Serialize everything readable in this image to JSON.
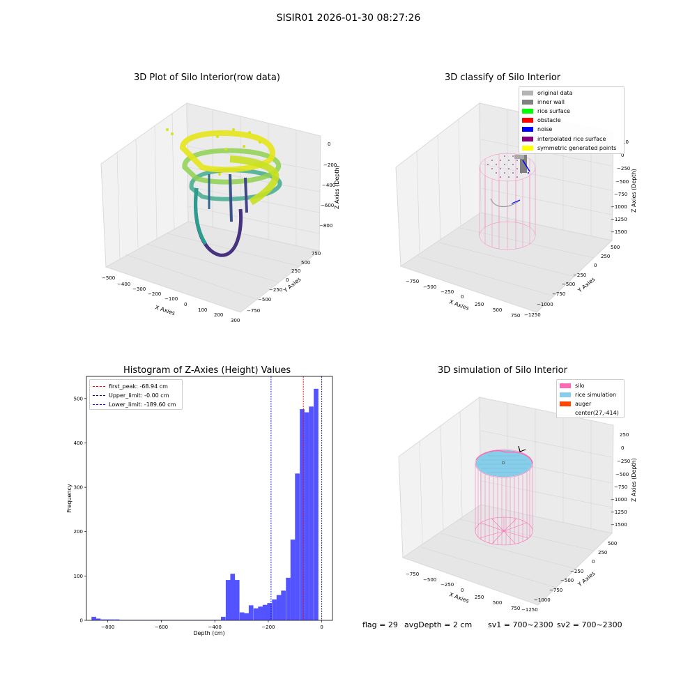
{
  "figure": {
    "suptitle": "SISIR01 2026-01-30 08:27:26",
    "status": {
      "flag": "flag = 29",
      "avg_depth": "avgDepth = 2 cm",
      "sv1": "sv1 = 700~2300",
      "sv2": "sv2 = 700~2300"
    }
  },
  "panels": {
    "raw": {
      "title": "3D Plot of Silo Interior(row data)",
      "xlabel": "X Axies",
      "ylabel": "Y Axies",
      "zlabel": "Z Axies (Depth)",
      "x_ticks": [
        "−500",
        "−400",
        "−300",
        "−200",
        "−100",
        "0",
        "100",
        "200",
        "300"
      ],
      "y_ticks": [
        "750",
        "500",
        "250",
        "0",
        "−250",
        "−500",
        "−750"
      ],
      "z_ticks": [
        "0",
        "−200",
        "−400",
        "−600",
        "−800"
      ],
      "colormap": "viridis"
    },
    "classify": {
      "title": "3D classify of Silo Interior",
      "xlabel": "X Axies",
      "ylabel": "Y Axies",
      "zlabel": "Z Axies (Depth)",
      "x_ticks": [
        "−750",
        "−500",
        "−250",
        "0",
        "250",
        "500",
        "750"
      ],
      "y_ticks": [
        "500",
        "250",
        "0",
        "−250",
        "−500",
        "−750",
        "−1000",
        "−1250"
      ],
      "z_ticks": [
        "0",
        "−250",
        "−500",
        "−750",
        "−1000",
        "−1250",
        "−1500"
      ],
      "z_tick_top_partial": "10",
      "legend": [
        {
          "label": "original data",
          "color": "#b3b3b3"
        },
        {
          "label": "inner wall",
          "color": "#808080"
        },
        {
          "label": "rice surface",
          "color": "#00ff00"
        },
        {
          "label": "obstacle",
          "color": "#ff0000"
        },
        {
          "label": "noise",
          "color": "#0000ff"
        },
        {
          "label": "interpolated rice surface",
          "color": "#800080"
        },
        {
          "label": "symmetric generated points",
          "color": "#ffff00"
        }
      ]
    },
    "simulation": {
      "title": "3D simulation of Silo Interior",
      "xlabel": "X Axies",
      "ylabel": "Y Axies",
      "zlabel": "Z Axies (Depth)",
      "x_ticks": [
        "−750",
        "−500",
        "−250",
        "0",
        "250",
        "500",
        "750"
      ],
      "y_ticks": [
        "500",
        "250",
        "0",
        "−250",
        "−500",
        "−750",
        "−1000",
        "−1250"
      ],
      "z_ticks": [
        "250",
        "0",
        "−250",
        "−500",
        "−750",
        "−1000",
        "−1250",
        "−1500"
      ],
      "legend": [
        {
          "label": "silo",
          "color": "#ff69b4"
        },
        {
          "label": "rice simulation",
          "color": "#87ceeb"
        },
        {
          "label": "auger",
          "color": "#ff4500"
        },
        {
          "label": "center(27,-414)",
          "color": "none"
        }
      ]
    }
  },
  "chart_data": [
    {
      "type": "bar",
      "title": "Histogram of Z-Axies (Height) Values",
      "xlabel": "Depth (cm)",
      "ylabel": "Frequency",
      "xlim": [
        -880,
        40
      ],
      "ylim": [
        0,
        550
      ],
      "x_ticks": [
        -800,
        -600,
        -400,
        -200,
        0
      ],
      "x_tick_labels": [
        "−800",
        "−600",
        "−400",
        "−200",
        "0"
      ],
      "y_ticks": [
        0,
        100,
        200,
        300,
        400,
        500
      ],
      "bar_color": "#4a4aff",
      "bin_width": 17.3,
      "bins": [
        {
          "x": -861,
          "value": 8
        },
        {
          "x": -844,
          "value": 4
        },
        {
          "x": -826,
          "value": 2
        },
        {
          "x": -809,
          "value": 2
        },
        {
          "x": -792,
          "value": 2
        },
        {
          "x": -774,
          "value": 2
        },
        {
          "x": -757,
          "value": 1
        },
        {
          "x": -740,
          "value": 1
        },
        {
          "x": -723,
          "value": 1
        },
        {
          "x": -705,
          "value": 1
        },
        {
          "x": -688,
          "value": 1
        },
        {
          "x": -671,
          "value": 1
        },
        {
          "x": -653,
          "value": 1
        },
        {
          "x": -636,
          "value": 1
        },
        {
          "x": -619,
          "value": 1
        },
        {
          "x": -601,
          "value": 1
        },
        {
          "x": -584,
          "value": 1
        },
        {
          "x": -567,
          "value": 1
        },
        {
          "x": -550,
          "value": 1
        },
        {
          "x": -532,
          "value": 1
        },
        {
          "x": -515,
          "value": 1
        },
        {
          "x": -498,
          "value": 1
        },
        {
          "x": -480,
          "value": 1
        },
        {
          "x": -463,
          "value": 1
        },
        {
          "x": -446,
          "value": 1
        },
        {
          "x": -428,
          "value": 1
        },
        {
          "x": -411,
          "value": 1
        },
        {
          "x": -394,
          "value": 1
        },
        {
          "x": -377,
          "value": 8
        },
        {
          "x": -359,
          "value": 91
        },
        {
          "x": -342,
          "value": 105
        },
        {
          "x": -325,
          "value": 91
        },
        {
          "x": -307,
          "value": 18
        },
        {
          "x": -290,
          "value": 16
        },
        {
          "x": -273,
          "value": 34
        },
        {
          "x": -255,
          "value": 27
        },
        {
          "x": -238,
          "value": 31
        },
        {
          "x": -221,
          "value": 35
        },
        {
          "x": -204,
          "value": 39
        },
        {
          "x": -186,
          "value": 47
        },
        {
          "x": -169,
          "value": 57
        },
        {
          "x": -152,
          "value": 67
        },
        {
          "x": -134,
          "value": 96
        },
        {
          "x": -117,
          "value": 182
        },
        {
          "x": -100,
          "value": 331
        },
        {
          "x": -82,
          "value": 476
        },
        {
          "x": -65,
          "value": 469
        },
        {
          "x": -48,
          "value": 482
        },
        {
          "x": -30,
          "value": 522
        }
      ],
      "vlines": [
        {
          "label": "first_peak: -68.94 cm",
          "x": -68.94,
          "color": "#ff0000"
        },
        {
          "label": "Upper_limit: -0.00 cm",
          "x": 0,
          "color": "#00008b"
        },
        {
          "label": "Lower_limit: -189.60 cm",
          "x": -189.6,
          "color": "#0000ff"
        }
      ],
      "legend_placement": "upper-left",
      "grid": false
    }
  ]
}
